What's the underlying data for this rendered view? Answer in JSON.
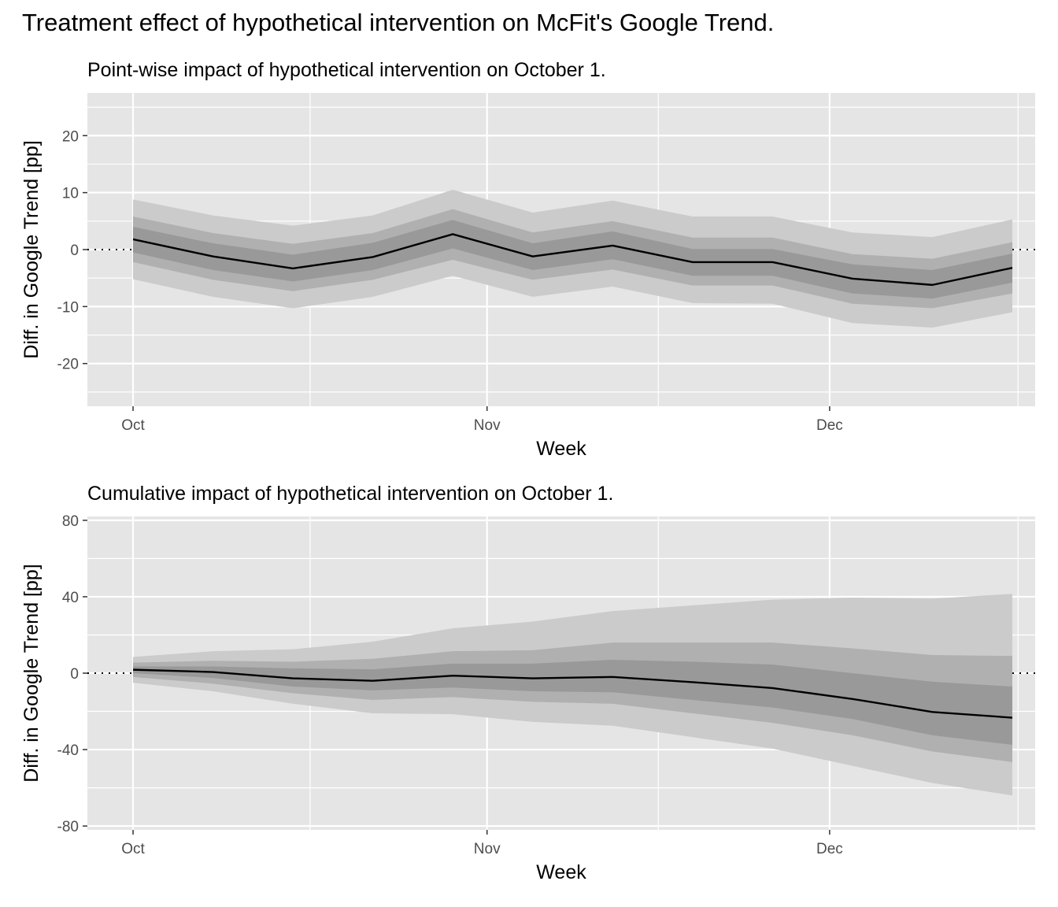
{
  "title": "Treatment effect of hypothetical intervention on McFit's Google Trend.",
  "chart_data": [
    {
      "type": "area",
      "title": "Point-wise impact of hypothetical intervention on October 1.",
      "xlabel": "Week",
      "ylabel": "Diff. in Google Trend [pp]",
      "x_ticks": [
        {
          "label": "Oct",
          "date": "2023-10-01"
        },
        {
          "label": "Nov",
          "date": "2023-11-01"
        },
        {
          "label": "Dec",
          "date": "2023-12-01"
        }
      ],
      "y_ticks": [
        -20,
        -10,
        0,
        10,
        20
      ],
      "xlim": [
        "2023-09-27",
        "2023-12-19"
      ],
      "ylim": [
        -27.5,
        27.5
      ],
      "reference_line": 0,
      "grid": true,
      "x": [
        "2023-10-01",
        "2023-10-08",
        "2023-10-15",
        "2023-10-22",
        "2023-10-29",
        "2023-11-05",
        "2023-11-12",
        "2023-11-19",
        "2023-11-26",
        "2023-12-03",
        "2023-12-10",
        "2023-12-17"
      ],
      "series": [
        {
          "values": [
            1.8,
            -1.2,
            -3.3,
            -1.3,
            2.7,
            -1.2,
            0.7,
            -2.2,
            -2.2,
            -5.1,
            -6.2,
            -3.2
          ]
        }
      ],
      "bands": [
        {
          "level": "outer",
          "lower": [
            -5.2,
            -8.3,
            -10.3,
            -8.3,
            -4.6,
            -8.3,
            -6.5,
            -9.4,
            -9.5,
            -12.9,
            -13.7,
            -11.0
          ],
          "upper": [
            8.8,
            6.0,
            4.2,
            6.0,
            10.5,
            6.5,
            8.6,
            5.8,
            5.8,
            3.0,
            2.2,
            5.3
          ]
        },
        {
          "level": "middle",
          "lower": [
            -2.2,
            -5.3,
            -7.3,
            -5.3,
            -1.8,
            -5.3,
            -3.5,
            -6.3,
            -6.3,
            -9.5,
            -10.3,
            -7.7
          ],
          "upper": [
            5.8,
            2.9,
            1.0,
            2.9,
            7.1,
            3.0,
            5.0,
            2.1,
            2.1,
            -0.8,
            -1.6,
            1.3
          ]
        },
        {
          "level": "inner",
          "lower": [
            -0.5,
            -3.6,
            -5.6,
            -3.6,
            0.2,
            -3.6,
            -1.7,
            -4.6,
            -4.6,
            -7.7,
            -8.6,
            -5.8
          ],
          "upper": [
            4.0,
            1.1,
            -0.9,
            1.2,
            5.2,
            1.1,
            3.2,
            0.1,
            0.1,
            -2.6,
            -3.6,
            -0.7
          ]
        }
      ]
    },
    {
      "type": "area",
      "title": "Cumulative impact of hypothetical intervention on October 1.",
      "xlabel": "Week",
      "ylabel": "Diff. in Google Trend [pp]",
      "x_ticks": [
        {
          "label": "Oct",
          "date": "2023-10-01"
        },
        {
          "label": "Nov",
          "date": "2023-11-01"
        },
        {
          "label": "Dec",
          "date": "2023-12-01"
        }
      ],
      "y_ticks": [
        -80,
        -40,
        0,
        40,
        80
      ],
      "xlim": [
        "2023-09-27",
        "2023-12-19"
      ],
      "ylim": [
        -82,
        82
      ],
      "reference_line": 0,
      "grid": true,
      "x": [
        "2023-10-01",
        "2023-10-08",
        "2023-10-15",
        "2023-10-22",
        "2023-10-29",
        "2023-11-05",
        "2023-11-12",
        "2023-11-19",
        "2023-11-26",
        "2023-12-03",
        "2023-12-10",
        "2023-12-17"
      ],
      "series": [
        {
          "values": [
            1.8,
            0.6,
            -2.7,
            -4.0,
            -1.3,
            -2.7,
            -2.0,
            -4.7,
            -7.8,
            -13.5,
            -20.3,
            -23.3
          ]
        }
      ],
      "bands": [
        {
          "level": "outer",
          "lower": [
            -5.0,
            -9.5,
            -16.0,
            -21.0,
            -21.5,
            -25.5,
            -27.5,
            -33.5,
            -39.5,
            -48.5,
            -57.5,
            -64.0
          ],
          "upper": [
            8.5,
            11.5,
            12.5,
            16.5,
            23.5,
            27.0,
            32.5,
            35.5,
            38.5,
            39.5,
            39.0,
            41.5
          ]
        },
        {
          "level": "middle",
          "lower": [
            -2.0,
            -5.5,
            -10.5,
            -14.0,
            -12.5,
            -15.0,
            -16.0,
            -21.0,
            -26.0,
            -32.5,
            -41.0,
            -46.5
          ],
          "upper": [
            5.5,
            6.5,
            6.0,
            7.5,
            11.5,
            12.0,
            16.0,
            16.0,
            16.0,
            13.0,
            9.5,
            9.0
          ]
        },
        {
          "level": "inner",
          "lower": [
            0.0,
            -2.5,
            -7.0,
            -9.0,
            -7.5,
            -9.5,
            -10.0,
            -14.0,
            -18.0,
            -24.0,
            -32.5,
            -37.5
          ],
          "upper": [
            3.5,
            3.5,
            2.5,
            2.0,
            5.0,
            5.0,
            7.0,
            6.0,
            4.5,
            0.0,
            -4.5,
            -7.0
          ]
        }
      ]
    }
  ],
  "colors": {
    "panel_background": "#e5e5e5",
    "grid": "#ffffff",
    "band_outer": "#cbcbcb",
    "band_middle": "#b0b0b0",
    "band_inner": "#999999",
    "line": "#000000",
    "tick_text": "#4d4d4d"
  }
}
